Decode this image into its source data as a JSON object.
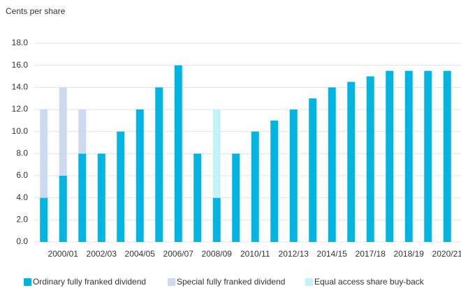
{
  "chart_data": {
    "type": "stacked_bar",
    "y_axis_label": "Cents per share",
    "categories": [
      null,
      "2000/01",
      null,
      "2002/03",
      null,
      "2004/05",
      null,
      "2006/07",
      null,
      "2008/09",
      null,
      "2010/11",
      null,
      "2012/13",
      null,
      "2014/15",
      null,
      "2017/18",
      null,
      "2018/19",
      null,
      "2020/21"
    ],
    "series": [
      {
        "name": "Ordinary fully franked dividend",
        "color": "#00b5e2",
        "values": [
          4,
          6,
          8,
          8,
          10,
          12,
          14,
          16,
          8,
          4,
          8,
          10,
          11,
          12,
          13,
          14,
          14.5,
          15,
          15.5,
          15.5,
          15.5,
          15.5
        ]
      },
      {
        "name": "Special fully franked dividend",
        "color": "#cdd9ef",
        "values": [
          8,
          8,
          4,
          0,
          0,
          0,
          0,
          0,
          0,
          0,
          0,
          0,
          0,
          0,
          0,
          0,
          0,
          0,
          0,
          0,
          0,
          0
        ]
      },
      {
        "name": "Equal access share buy-back",
        "color": "#c4f2f9",
        "values": [
          0,
          0,
          0,
          0,
          0,
          0,
          0,
          0,
          0,
          8,
          0,
          0,
          0,
          0,
          0,
          0,
          0,
          0,
          0,
          0,
          0,
          0
        ]
      }
    ],
    "ylim": [
      0,
      18
    ],
    "yticks": [
      {
        "value": 0,
        "label": "0.0"
      },
      {
        "value": 2,
        "label": "2.0"
      },
      {
        "value": 4,
        "label": "4.0"
      },
      {
        "value": 6,
        "label": "6.0"
      },
      {
        "value": 8,
        "label": "8.0"
      },
      {
        "value": 10,
        "label": "10.0"
      },
      {
        "value": 12,
        "label": "12.0"
      },
      {
        "value": 14,
        "label": "14.0"
      },
      {
        "value": 16,
        "label": "16.0"
      },
      {
        "value": 18,
        "label": "18.0"
      }
    ],
    "grid": true,
    "legend": "bottom"
  }
}
